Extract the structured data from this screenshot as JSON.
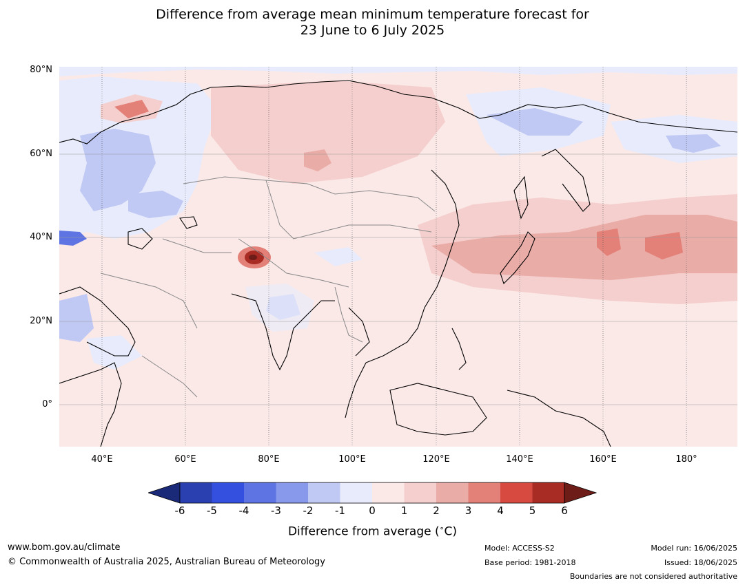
{
  "title_line1": "Difference from average mean minimum temperature forecast for",
  "title_line2": "23 June to 6 July 2025",
  "lat_labels": [
    "80°N",
    "60°N",
    "40°N",
    "20°N",
    "0°"
  ],
  "lon_labels": [
    "40°E",
    "60°E",
    "80°E",
    "100°E",
    "120°E",
    "140°E",
    "160°E",
    "180°"
  ],
  "colorbar": {
    "ticks": [
      "-6",
      "-5",
      "-4",
      "-3",
      "-2",
      "-1",
      "0",
      "1",
      "2",
      "3",
      "4",
      "5",
      "6"
    ],
    "colors": [
      "#1a2a78",
      "#2a3fb0",
      "#3351de",
      "#5e74e2",
      "#8898ea",
      "#c0c8f4",
      "#e8ebfb",
      "#fbe9e8",
      "#f4cfcd",
      "#eaaca7",
      "#e38179",
      "#d64a40",
      "#a82b24",
      "#6e1c18"
    ],
    "label": "Difference from average ($^\\circ$C)"
  },
  "footer": {
    "website": "www.bom.gov.au/climate",
    "copyright": "© Commonwealth of Australia 2025, Australian Bureau of Meteorology",
    "model": "Model: ACCESS-S2",
    "base_period": "Base period: 1981-2018",
    "model_run": "Model run: 16/06/2025",
    "issued": "Issued: 18/06/2025",
    "disclaimer": "Boundaries are not considered authoritative"
  }
}
